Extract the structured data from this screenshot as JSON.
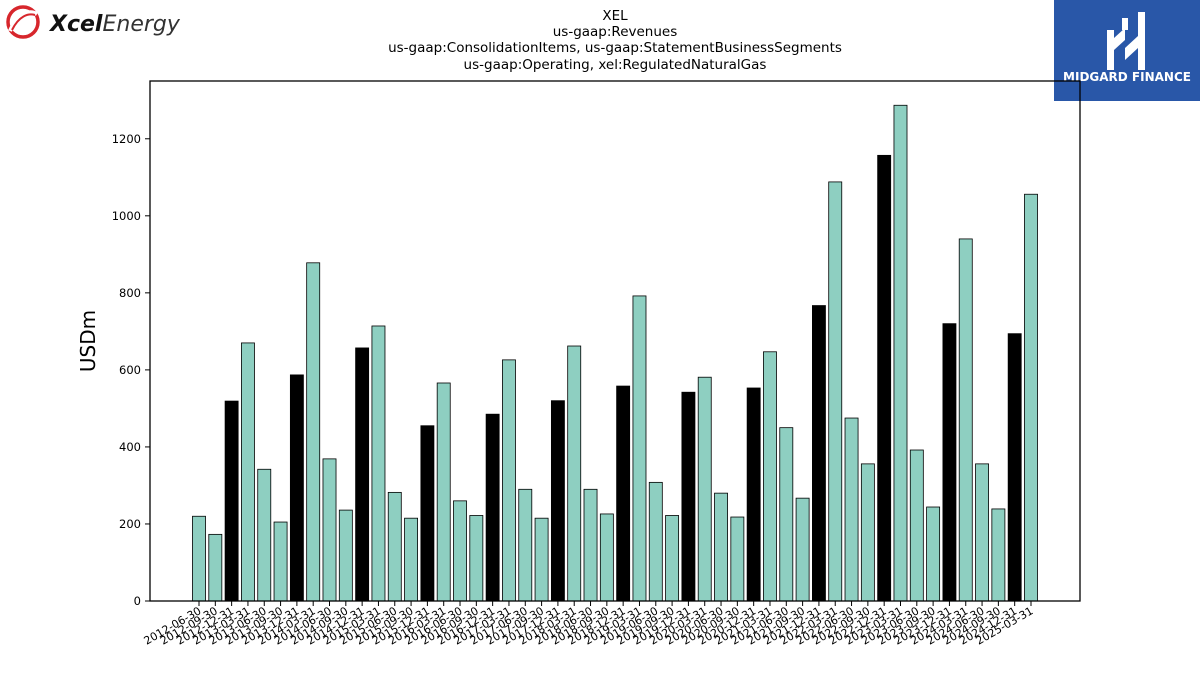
{
  "branding": {
    "left_logo_text": "Xcel Energy",
    "left_logo_text_bold": "Xcel",
    "left_logo_text_light": "Energy",
    "right_logo_text": "MIDGARD FINANCE",
    "right_logo_bg": "#2957a8"
  },
  "colors": {
    "annual_bar": "#000000",
    "quarter_bar": "#8ecfc1",
    "bar_edge": "#000000"
  },
  "chart_data": {
    "type": "bar",
    "title": [
      "XEL",
      "us-gaap:Revenues",
      "us-gaap:ConsolidationItems, us-gaap:StatementBusinessSegments",
      "us-gaap:Operating, xel:RegulatedNaturalGas"
    ],
    "xlabel": "",
    "ylabel": "USDm",
    "ylim": [
      0,
      1350
    ],
    "yticks": [
      0,
      200,
      400,
      600,
      800,
      1000,
      1200
    ],
    "grid": false,
    "legend": "none",
    "categories": [
      "2012-06-30",
      "2012-09-30",
      "2012-12-31",
      "2013-03-31",
      "2013-06-30",
      "2013-09-30",
      "2013-12-31",
      "2014-03-31",
      "2014-06-30",
      "2014-09-30",
      "2014-12-31",
      "2015-03-31",
      "2015-06-30",
      "2015-09-30",
      "2015-12-31",
      "2016-03-31",
      "2016-06-30",
      "2016-09-30",
      "2016-12-31",
      "2017-03-31",
      "2017-06-30",
      "2017-09-30",
      "2017-12-31",
      "2018-03-31",
      "2018-06-30",
      "2018-09-30",
      "2018-12-31",
      "2019-03-31",
      "2019-06-30",
      "2019-09-30",
      "2019-12-31",
      "2020-03-31",
      "2020-06-30",
      "2020-09-30",
      "2020-12-31",
      "2021-03-31",
      "2021-06-30",
      "2021-09-30",
      "2021-12-31",
      "2022-03-31",
      "2022-06-30",
      "2022-09-30",
      "2022-12-31",
      "2023-03-31",
      "2023-06-30",
      "2023-09-30",
      "2023-12-31",
      "2024-03-31",
      "2024-06-30",
      "2024-09-30",
      "2024-12-31",
      "2025-03-31"
    ],
    "values": [
      220,
      173,
      519,
      670,
      342,
      205,
      587,
      878,
      369,
      236,
      657,
      714,
      282,
      215,
      455,
      566,
      260,
      222,
      485,
      626,
      290,
      215,
      520,
      662,
      290,
      226,
      558,
      792,
      308,
      222,
      542,
      581,
      280,
      218,
      553,
      647,
      450,
      267,
      767,
      1088,
      475,
      356,
      1157,
      1287,
      392,
      244,
      720,
      940,
      356,
      239,
      694,
      1056
    ],
    "annual_indices": [
      2,
      6,
      10,
      14,
      18,
      22,
      26,
      30,
      34,
      38,
      42,
      46,
      50
    ]
  }
}
